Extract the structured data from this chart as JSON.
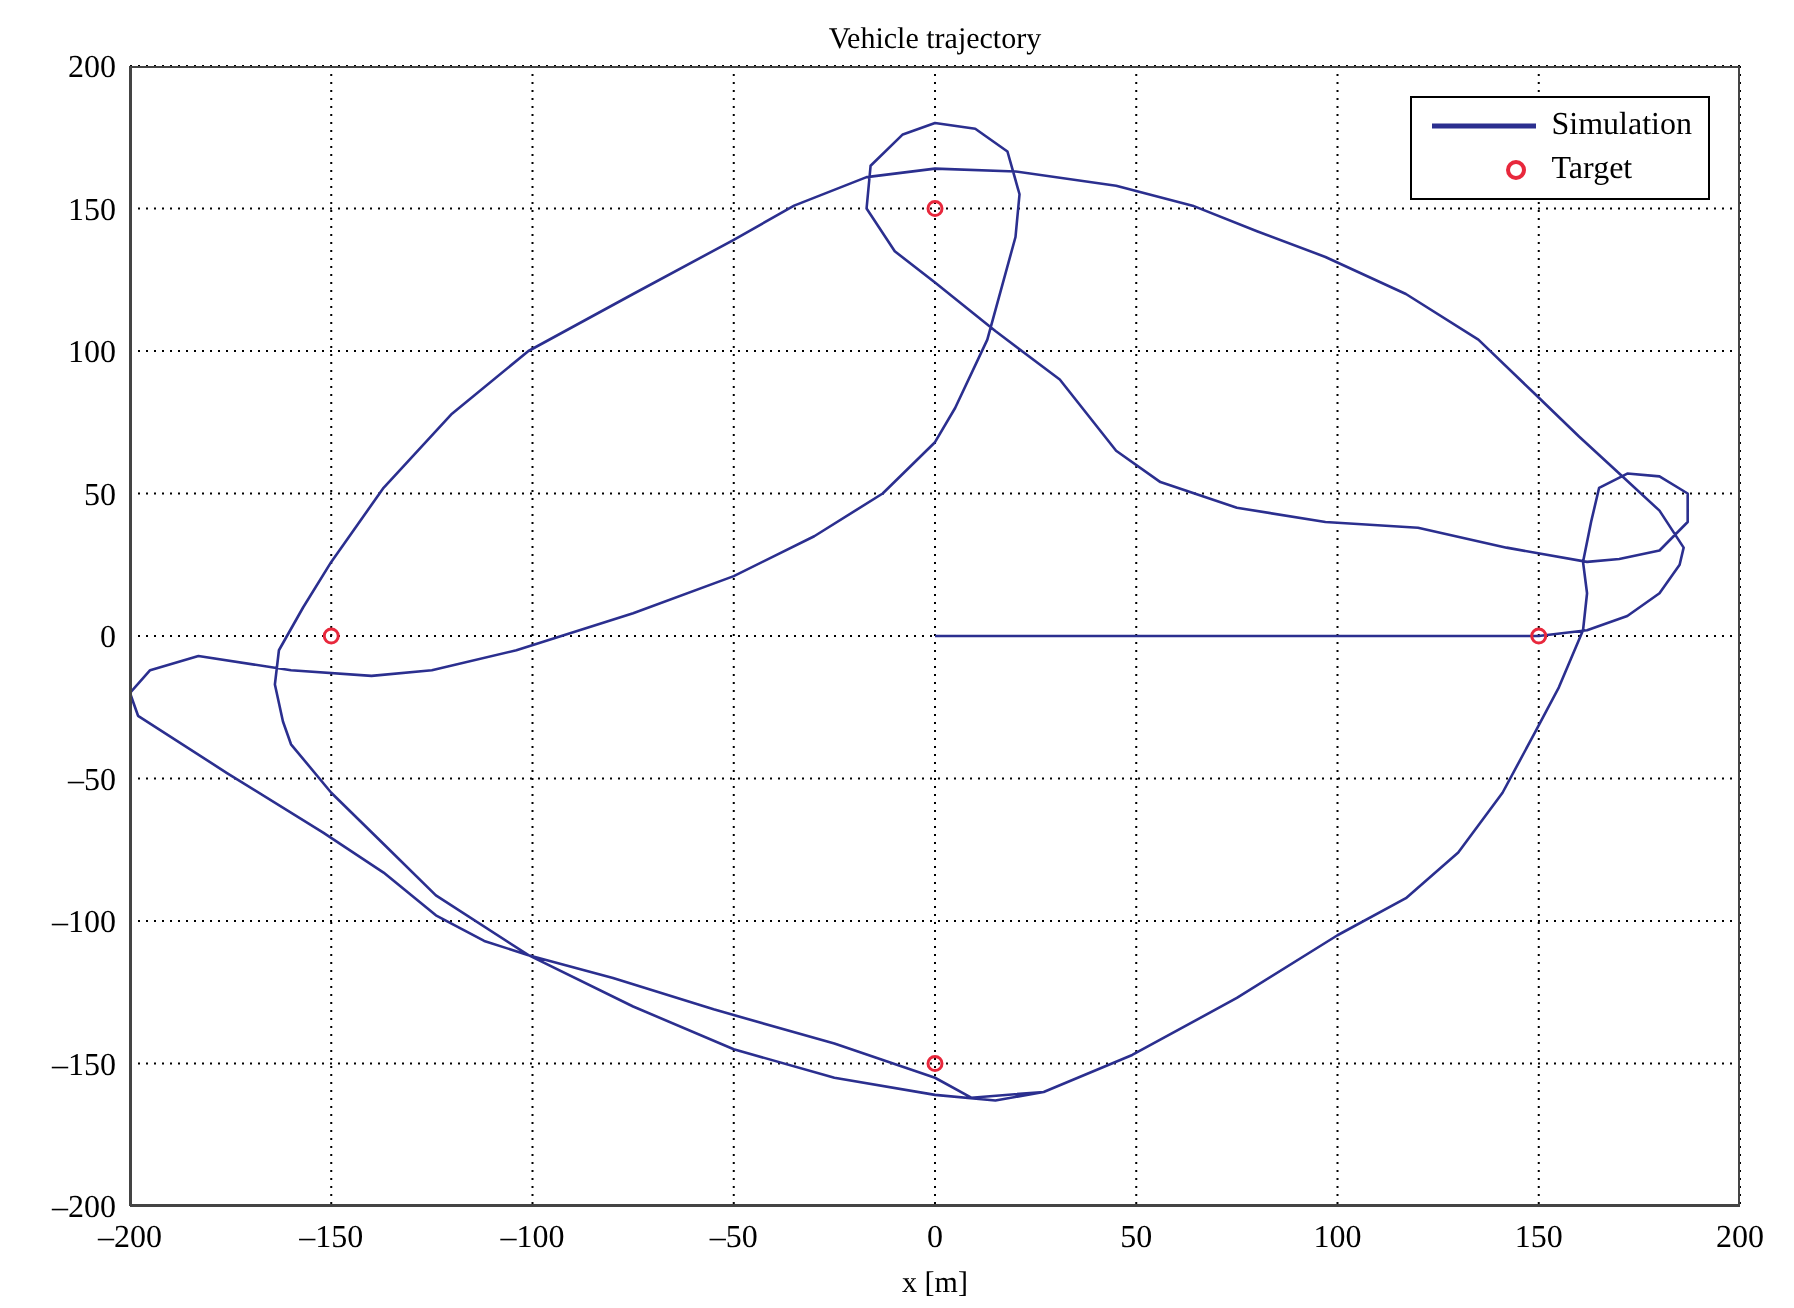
{
  "chart_data": {
    "type": "line",
    "title": "Vehicle trajectory",
    "xlabel": "x [m]",
    "xlim": [
      -200,
      200
    ],
    "ylim": [
      -200,
      200
    ],
    "xticks": [
      {
        "value": -200,
        "label": "–200"
      },
      {
        "value": -150,
        "label": "–150"
      },
      {
        "value": -100,
        "label": "–100"
      },
      {
        "value": -50,
        "label": "–50"
      },
      0,
      50,
      100,
      150,
      200
    ],
    "yticks": [
      {
        "value": -200,
        "label": "–200"
      },
      {
        "value": -150,
        "label": "–150"
      },
      {
        "value": -100,
        "label": "–100"
      },
      {
        "value": -50,
        "label": "–50"
      },
      0,
      50,
      100,
      150,
      200
    ],
    "grid": true,
    "legend": "top right",
    "series": [
      {
        "name": "Simulation",
        "color": "#2b2f8f",
        "marker": "none",
        "line_style": "solid",
        "x": [
          0,
          150,
          162,
          172,
          180,
          185,
          186,
          180,
          170,
          160,
          149,
          135,
          117,
          97,
          80,
          64,
          45,
          20,
          0,
          -17,
          -35,
          -50,
          -75,
          -101,
          -120,
          -137,
          -150,
          -157,
          -163,
          -164,
          -162,
          -160,
          -150,
          -137,
          -124,
          -101,
          -75,
          -50,
          -25,
          0,
          15,
          27,
          49,
          75,
          100,
          117,
          130,
          141,
          149,
          155,
          161,
          162,
          161,
          163,
          165,
          172,
          180,
          187,
          187,
          180,
          170,
          162,
          142,
          120,
          97,
          75,
          56,
          45,
          31,
          15,
          0,
          -10,
          -17,
          -16,
          -8,
          0,
          10,
          18,
          21,
          20,
          13,
          5,
          0,
          -13,
          -30,
          -50,
          -75,
          -104,
          -125,
          -140,
          -160,
          -183,
          -195,
          -200,
          -198,
          -176,
          -152,
          -137,
          -124,
          -112,
          -101,
          -80,
          -55,
          -25,
          0,
          9,
          27,
          49,
          75,
          100,
          117,
          130,
          141,
          149,
          155,
          158
        ],
        "values": [
          0,
          0,
          2,
          7,
          15,
          25,
          31,
          44,
          57,
          70,
          85,
          104,
          120,
          133,
          142,
          151,
          158,
          163,
          164,
          161,
          151,
          139,
          120,
          100,
          78,
          52,
          26,
          10,
          -5,
          -17,
          -30,
          -38,
          -55,
          -73,
          -91,
          -112,
          -130,
          -145,
          -155,
          -161,
          -163,
          -160,
          -147,
          -127,
          -105,
          -92,
          -76,
          -55,
          -34,
          -18,
          2,
          15,
          26,
          40,
          52,
          57,
          56,
          50,
          40,
          30,
          27,
          26,
          31,
          38,
          40,
          45,
          54,
          65,
          90,
          107,
          124,
          135,
          150,
          165,
          176,
          180,
          178,
          170,
          155,
          140,
          104,
          80,
          68,
          50,
          35,
          21,
          8,
          -5,
          -12,
          -14,
          -12,
          -7,
          -12,
          -20,
          -28,
          -48,
          -69,
          -83,
          -98,
          -107,
          -112,
          -120,
          -131,
          -143,
          -155,
          -162,
          -160,
          -147,
          -127,
          -105,
          -92,
          -76,
          -55,
          -34,
          -18,
          -8
        ]
      },
      {
        "name": "Target",
        "type": "scatter",
        "color": "#e8283c",
        "marker": "circle",
        "x": [
          150,
          0,
          -150,
          0
        ],
        "values": [
          0,
          150,
          0,
          -150
        ]
      }
    ]
  }
}
